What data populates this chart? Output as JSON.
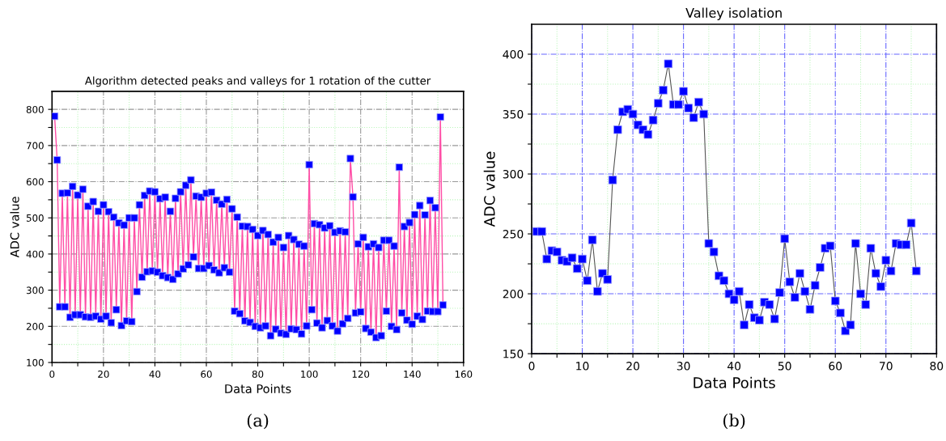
{
  "chart_data": [
    {
      "type": "line",
      "title": "Algorithm detected peaks and valleys for 1 rotation of the cutter",
      "xlabel": "Data Points",
      "ylabel": "ADC value",
      "annotations": [
        "(a)"
      ],
      "marker": "square",
      "grid": true,
      "xlim": [
        0,
        160
      ],
      "ylim": [
        100,
        850
      ],
      "xticks": [
        0,
        {
          "value": 10,
          "label": null
        },
        20,
        {
          "value": 30,
          "label": null
        },
        40,
        {
          "value": 50,
          "label": null
        },
        60,
        {
          "value": 70,
          "label": null
        },
        80,
        {
          "value": 90,
          "label": null
        },
        100,
        {
          "value": 110,
          "label": null
        },
        120,
        {
          "value": 130,
          "label": null
        },
        140,
        {
          "value": 150,
          "label": null
        },
        160
      ],
      "yticks": [
        100,
        {
          "value": 150,
          "label": null
        },
        200,
        {
          "value": 250,
          "label": null
        },
        300,
        {
          "value": 350,
          "label": null
        },
        400,
        {
          "value": 450,
          "label": null
        },
        500,
        {
          "value": 550,
          "label": null
        },
        600,
        {
          "value": 650,
          "label": null
        },
        700,
        {
          "value": 750,
          "label": null
        },
        800
      ],
      "x": [
        1,
        2,
        3,
        4,
        5,
        6,
        7,
        8,
        9,
        10,
        11,
        12,
        13,
        14,
        15,
        16,
        17,
        18,
        19,
        20,
        21,
        22,
        23,
        24,
        25,
        26,
        27,
        28,
        29,
        30,
        31,
        32,
        33,
        34,
        35,
        36,
        37,
        38,
        39,
        40,
        41,
        42,
        43,
        44,
        45,
        46,
        47,
        48,
        49,
        50,
        51,
        52,
        53,
        54,
        55,
        56,
        57,
        58,
        59,
        60,
        61,
        62,
        63,
        64,
        65,
        66,
        67,
        68,
        69,
        70,
        71,
        72,
        73,
        74,
        75,
        76,
        77,
        78,
        79,
        80,
        81,
        82,
        83,
        84,
        85,
        86,
        87,
        88,
        89,
        90,
        91,
        92,
        93,
        94,
        95,
        96,
        97,
        98,
        99,
        100,
        101,
        102,
        103,
        104,
        105,
        106,
        107,
        108,
        109,
        110,
        111,
        112,
        113,
        114,
        115,
        116,
        117,
        118,
        119,
        120,
        121,
        122,
        123,
        124,
        125,
        126,
        127,
        128,
        129,
        130,
        131,
        132,
        133,
        134,
        135,
        136,
        137,
        138,
        139,
        140,
        141,
        142,
        143,
        144,
        145,
        146,
        147,
        148,
        149,
        150,
        151,
        152
      ],
      "series": [
        {
          "color": "#0000ff",
          "values": [
            781,
            660,
            254,
            568,
            254,
            569,
            225,
            587,
            232,
            563,
            232,
            579,
            226,
            532,
            225,
            545,
            228,
            518,
            220,
            536,
            228,
            517,
            210,
            502,
            246,
            486,
            202,
            480,
            215,
            500,
            213,
            500,
            296,
            536,
            336,
            562,
            351,
            574,
            353,
            572,
            350,
            553,
            340,
            557,
            335,
            518,
            330,
            554,
            345,
            572,
            359,
            590,
            370,
            605,
            392,
            560,
            360,
            557,
            360,
            568,
            368,
            571,
            356,
            549,
            348,
            538,
            362,
            551,
            350,
            525,
            242,
            502,
            235,
            477,
            215,
            476,
            211,
            468,
            200,
            451,
            196,
            465,
            201,
            454,
            174,
            433,
            192,
            446,
            181,
            418,
            178,
            451,
            193,
            440,
            191,
            427,
            179,
            422,
            201,
            647,
            246,
            484,
            209,
            481,
            196,
            472,
            216,
            478,
            201,
            460,
            187,
            464,
            207,
            461,
            222,
            664,
            558,
            237,
            428,
            240,
            446,
            194,
            420,
            184,
            428,
            169,
            418,
            174,
            438,
            242,
            438,
            200,
            422,
            191,
            640,
            237,
            476,
            217,
            487,
            206,
            509,
            228,
            534,
            219,
            508,
            242,
            548,
            241,
            528,
            241,
            779,
            259
          ]
        }
      ]
    },
    {
      "type": "line",
      "title": "Valley isolation",
      "xlabel": "Data Points",
      "ylabel": "ADC value",
      "annotations": [
        "(b)"
      ],
      "marker": "square",
      "grid": true,
      "xlim": [
        0,
        80
      ],
      "ylim": [
        150,
        425
      ],
      "xticks": [
        0,
        {
          "value": 5,
          "label": null
        },
        10,
        {
          "value": 15,
          "label": null
        },
        20,
        {
          "value": 25,
          "label": null
        },
        30,
        {
          "value": 35,
          "label": null
        },
        40,
        {
          "value": 45,
          "label": null
        },
        50,
        {
          "value": 55,
          "label": null
        },
        60,
        {
          "value": 65,
          "label": null
        },
        70,
        {
          "value": 75,
          "label": null
        },
        80
      ],
      "yticks": [
        150,
        {
          "value": 175,
          "label": null
        },
        200,
        {
          "value": 225,
          "label": null
        },
        250,
        {
          "value": 275,
          "label": null
        },
        300,
        {
          "value": 325,
          "label": null
        },
        350,
        {
          "value": 375,
          "label": null
        },
        400
      ],
      "x": [
        1,
        2,
        3,
        4,
        5,
        6,
        7,
        8,
        9,
        10,
        11,
        12,
        13,
        14,
        15,
        16,
        17,
        18,
        19,
        20,
        21,
        22,
        23,
        24,
        25,
        26,
        27,
        28,
        29,
        30,
        31,
        32,
        33,
        34,
        35,
        36,
        37,
        38,
        39,
        40,
        41,
        42,
        43,
        44,
        45,
        46,
        47,
        48,
        49,
        50,
        51,
        52,
        53,
        54,
        55,
        56,
        57,
        58,
        59,
        60,
        61,
        62,
        63,
        64,
        65,
        66,
        67,
        68,
        69,
        70,
        71,
        72,
        73,
        74,
        75,
        76
      ],
      "series": [
        {
          "color": "#0000ff",
          "values": [
            252,
            252,
            229,
            236,
            235,
            228,
            227,
            230,
            221,
            229,
            211,
            245,
            202,
            217,
            212,
            295,
            337,
            352,
            354,
            350,
            341,
            337,
            333,
            345,
            359,
            370,
            392,
            358,
            358,
            369,
            355,
            347,
            360,
            350,
            242,
            235,
            215,
            211,
            200,
            195,
            202,
            174,
            191,
            180,
            178,
            193,
            191,
            179,
            201,
            246,
            210,
            197,
            217,
            202,
            187,
            207,
            222,
            238,
            240,
            194,
            184,
            169,
            174,
            242,
            200,
            191,
            238,
            217,
            206,
            228,
            219,
            242,
            241,
            241,
            259,
            219
          ]
        }
      ]
    }
  ]
}
